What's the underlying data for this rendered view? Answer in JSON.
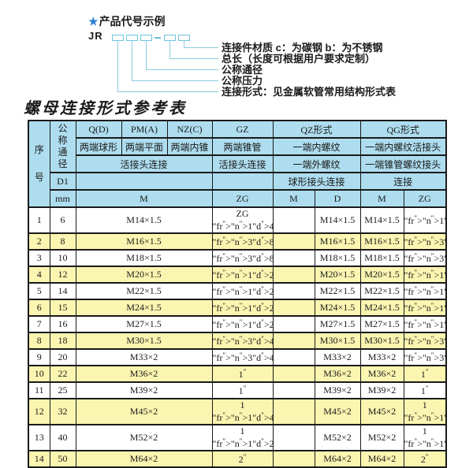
{
  "colors": {
    "header_blue": "#aeddef",
    "row_yellow": "#faf5b0",
    "connector_cyan": "#8ccbe2",
    "star_blue": "#2b7fd0",
    "border_black": "#1a1a1a"
  },
  "diagram": {
    "star": "★",
    "title": "产品代号示例",
    "prefix": "JR",
    "labels": [
      "连接件材质  c：为碳钢  b：为不锈钢",
      "总长（长度可根据用户要求定制）",
      "公称通径",
      "公称压力",
      "连接形式：见金属软管常用结构形式表"
    ]
  },
  "table_title": "螺母连接形式参考表",
  "table": {
    "header": {
      "seq": "序号",
      "dn": "公称通径",
      "d1": "D1",
      "mm": "mm",
      "q": "Q(D)",
      "q_desc": "两端球形",
      "pm": "PM(A)",
      "pm_desc": "两端平面",
      "nz": "NZ(C)",
      "nz_desc": "两端内锥",
      "gz": "GZ",
      "gz_desc": "两端锥管",
      "union_3": "活接头连接",
      "union_gz": "活接头连接",
      "qz": "QZ形式",
      "qz_desc1": "一端内螺纹",
      "qz_desc2": "一端外螺纹",
      "qz_desc3": "球形接头连接",
      "qg": "QG形式",
      "qg_desc1": "一端内螺纹活接头",
      "qg_desc2": "一端锥管螺纹接头",
      "qg_desc3": "连接",
      "m": "M",
      "zg": "ZG",
      "qz_m": "M",
      "qz_d": "D",
      "qg_m": "M",
      "qg_zg": "ZG"
    },
    "rows": [
      {
        "seq": "1",
        "dn": "6",
        "m": "M14×1.5",
        "zg": "ZG 1/4\"",
        "qz_m": "",
        "qz_d": "M14×1.5",
        "qg_m": "M14×1.5",
        "qg_zg": "1/4\""
      },
      {
        "seq": "2",
        "dn": "8",
        "m": "M16×1.5",
        "zg": "3/8\"",
        "qz_m": "",
        "qz_d": "M16×1.5",
        "qg_m": "M16×1.5",
        "qg_zg": "3/8\""
      },
      {
        "seq": "3",
        "dn": "10",
        "m": "M18×1.5",
        "zg": "3/8\"",
        "qz_m": "",
        "qz_d": "M18×1.5",
        "qg_m": "M18×1.5",
        "qg_zg": "3/8\""
      },
      {
        "seq": "4",
        "dn": "12",
        "m": "M20×1.5",
        "zg": "1/2\"",
        "qz_m": "",
        "qz_d": "M20×1.5",
        "qg_m": "M20×1.5",
        "qg_zg": "1/2\""
      },
      {
        "seq": "5",
        "dn": "14",
        "m": "M22×1.5",
        "zg": "1/2\"",
        "qz_m": "",
        "qz_d": "M22×1.5",
        "qg_m": "M22×1.5",
        "qg_zg": "1/2\""
      },
      {
        "seq": "6",
        "dn": "15",
        "m": "M24×1.5",
        "zg": "1/2\"",
        "qz_m": "",
        "qz_d": "M24×1.5",
        "qg_m": "M24×1.5",
        "qg_zg": "1/2\""
      },
      {
        "seq": "7",
        "dn": "16",
        "m": "M27×1.5",
        "zg": "1/2\"",
        "qz_m": "",
        "qz_d": "M27×1.5",
        "qg_m": "M27×1.5",
        "qg_zg": "1/2\""
      },
      {
        "seq": "8",
        "dn": "18",
        "m": "M30×1.5",
        "zg": "3/4\"",
        "qz_m": "",
        "qz_d": "M30×1.5",
        "qg_m": "M30×1.5",
        "qg_zg": "3/4\""
      },
      {
        "seq": "9",
        "dn": "20",
        "m": "M33×2",
        "zg": "3/4\"",
        "qz_m": "",
        "qz_d": "M33×2",
        "qg_m": "M33×2",
        "qg_zg": "3/4\""
      },
      {
        "seq": "10",
        "dn": "22",
        "m": "M36×2",
        "zg": "1\"",
        "qz_m": "",
        "qz_d": "M36×2",
        "qg_m": "M36×2",
        "qg_zg": "1\""
      },
      {
        "seq": "11",
        "dn": "25",
        "m": "M39×2",
        "zg": "1\"",
        "qz_m": "",
        "qz_d": "M39×2",
        "qg_m": "M39×2",
        "qg_zg": "1\""
      },
      {
        "seq": "12",
        "dn": "32",
        "m": "M45×2",
        "zg": "1 1/4\"",
        "qz_m": "",
        "qz_d": "M45×2",
        "qg_m": "M45×2",
        "qg_zg": "1 1/4\""
      },
      {
        "seq": "13",
        "dn": "40",
        "m": "M52×2",
        "zg": "1 1/2\"",
        "qz_m": "",
        "qz_d": "M52×2",
        "qg_m": "M52×2",
        "qg_zg": "1 1/2\""
      },
      {
        "seq": "14",
        "dn": "50",
        "m": "M64×2",
        "zg": "2\"",
        "qz_m": "",
        "qz_d": "M64×2",
        "qg_m": "M64×2",
        "qg_zg": "2\""
      }
    ]
  }
}
